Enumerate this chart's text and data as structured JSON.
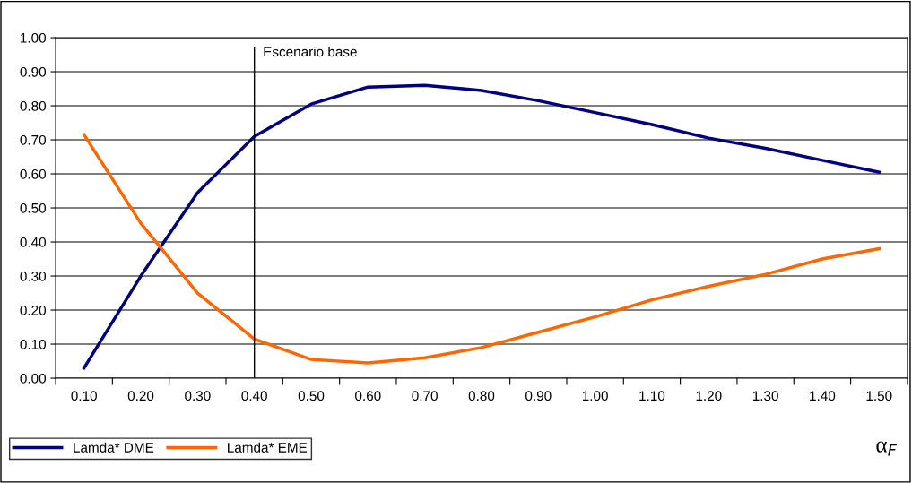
{
  "chart_data": {
    "type": "line",
    "xlabel": "α$_{F}$",
    "categories": [
      "0.10",
      "0.20",
      "0.30",
      "0.40",
      "0.50",
      "0.60",
      "0.70",
      "0.80",
      "0.90",
      "1.00",
      "1.10",
      "1.20",
      "1.30",
      "1.40",
      "1.50"
    ],
    "series": [
      {
        "name": "Lamda* DME",
        "color": "#000080",
        "values": [
          0.03,
          0.3,
          0.545,
          0.71,
          0.805,
          0.855,
          0.86,
          0.845,
          0.815,
          0.78,
          0.745,
          0.705,
          0.675,
          0.64,
          0.605
        ]
      },
      {
        "name": "Lamda* EME",
        "color": "#ff6600",
        "values": [
          0.715,
          0.455,
          0.25,
          0.115,
          0.055,
          0.045,
          0.06,
          0.09,
          0.135,
          0.18,
          0.23,
          0.27,
          0.305,
          0.35,
          0.38
        ]
      }
    ],
    "ylim": [
      0,
      1
    ],
    "yticks": [
      {
        "value": 0,
        "label": "0.00"
      },
      {
        "value": 0.1,
        "label": "0.10"
      },
      {
        "value": 0.2,
        "label": "0.20"
      },
      {
        "value": 0.3,
        "label": "0.30"
      },
      {
        "value": 0.4,
        "label": "0.40"
      },
      {
        "value": 0.5,
        "label": "0.50"
      },
      {
        "value": 0.6,
        "label": "0.60"
      },
      {
        "value": 0.7,
        "label": "0.70"
      },
      {
        "value": 0.8,
        "label": "0.80"
      },
      {
        "value": 0.9,
        "label": "0.90"
      },
      {
        "value": 1,
        "label": "1.00"
      }
    ],
    "ref_lines": [
      {
        "axis": "x",
        "value": "0.40",
        "label": "Escenario base",
        "color": "#000000"
      }
    ],
    "grid": "y",
    "legend": "bottom left",
    "marker": "none",
    "line_style": "solid"
  }
}
